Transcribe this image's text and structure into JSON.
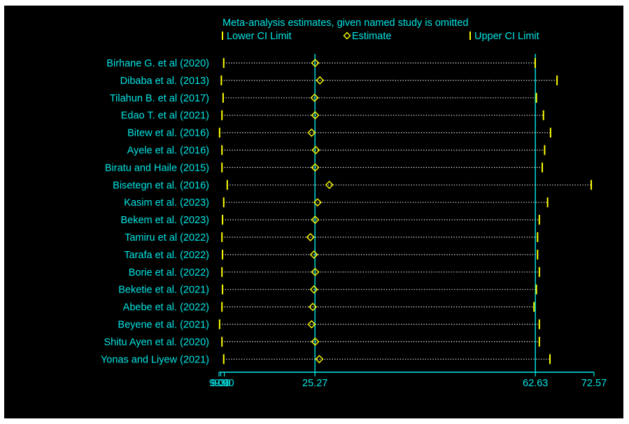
{
  "chart_data": {
    "type": "scatter",
    "title": "Meta-analysis estimates, given named study is omitted",
    "legend": {
      "position": "top",
      "entries": [
        {
          "key": "lower",
          "label": "Lower CI Limit",
          "marker": "tick"
        },
        {
          "key": "estimate",
          "label": "Estimate",
          "marker": "diamond"
        },
        {
          "key": "upper",
          "label": "Upper CI Limit",
          "marker": "tick"
        }
      ]
    },
    "xlim": [
      9.0,
      72.57
    ],
    "ticks": [
      {
        "value": 9.0,
        "label": "9.00"
      },
      {
        "value": 9.3,
        "label": "9.30"
      },
      {
        "value": 9.9,
        "label": "9.90"
      },
      {
        "value": 25.27,
        "label": "25.27"
      },
      {
        "value": 62.63,
        "label": "62.63"
      },
      {
        "value": 72.57,
        "label": "72.57"
      }
    ],
    "reference_lines": [
      25.27,
      62.63
    ],
    "studies": [
      {
        "name": "Birhane G. et al (2020)",
        "lower": 9.8,
        "estimate": 25.3,
        "upper": 62.6
      },
      {
        "name": "Dibaba et al. (2013)",
        "lower": 9.4,
        "estimate": 26.1,
        "upper": 66.3
      },
      {
        "name": "Tilahun B. et al (2017)",
        "lower": 9.7,
        "estimate": 25.2,
        "upper": 62.8
      },
      {
        "name": "Edao T. et al (2021)",
        "lower": 9.5,
        "estimate": 25.3,
        "upper": 64.0
      },
      {
        "name": "Bitew et al. (2016)",
        "lower": 9.1,
        "estimate": 24.7,
        "upper": 65.2
      },
      {
        "name": "Ayele et al. (2016)",
        "lower": 9.5,
        "estimate": 25.4,
        "upper": 64.2
      },
      {
        "name": "Biratu and Haile (2015)",
        "lower": 9.5,
        "estimate": 25.3,
        "upper": 63.8
      },
      {
        "name": "Bisetegn et al. (2016)",
        "lower": 10.4,
        "estimate": 27.7,
        "upper": 72.1
      },
      {
        "name": "Kasim et al. (2023)",
        "lower": 9.8,
        "estimate": 25.7,
        "upper": 64.7
      },
      {
        "name": "Bekem et al. (2023)",
        "lower": 9.6,
        "estimate": 25.3,
        "upper": 63.3
      },
      {
        "name": "Tamiru et al (2022)",
        "lower": 9.5,
        "estimate": 24.5,
        "upper": 63.0
      },
      {
        "name": "Tarafa et al. (2022)",
        "lower": 9.6,
        "estimate": 25.1,
        "upper": 63.0
      },
      {
        "name": "Borie et al. (2022)",
        "lower": 9.5,
        "estimate": 25.3,
        "upper": 63.3
      },
      {
        "name": "Beketie et al. (2021)",
        "lower": 9.6,
        "estimate": 25.1,
        "upper": 62.8
      },
      {
        "name": "Abebe et al. (2022)",
        "lower": 9.5,
        "estimate": 24.9,
        "upper": 62.4
      },
      {
        "name": "Beyene et al. (2021)",
        "lower": 9.1,
        "estimate": 24.7,
        "upper": 63.3
      },
      {
        "name": "Shitu Ayen et al. (2020)",
        "lower": 9.5,
        "estimate": 25.3,
        "upper": 63.3
      },
      {
        "name": "Yonas and Liyew (2021)",
        "lower": 9.8,
        "estimate": 26.0,
        "upper": 65.1
      }
    ],
    "grid": false,
    "colors": {
      "background": "#000000",
      "text": "#00e5e5",
      "axis": "#00e5e5",
      "markers": "#ffff00",
      "frame": "#ffffff"
    }
  }
}
